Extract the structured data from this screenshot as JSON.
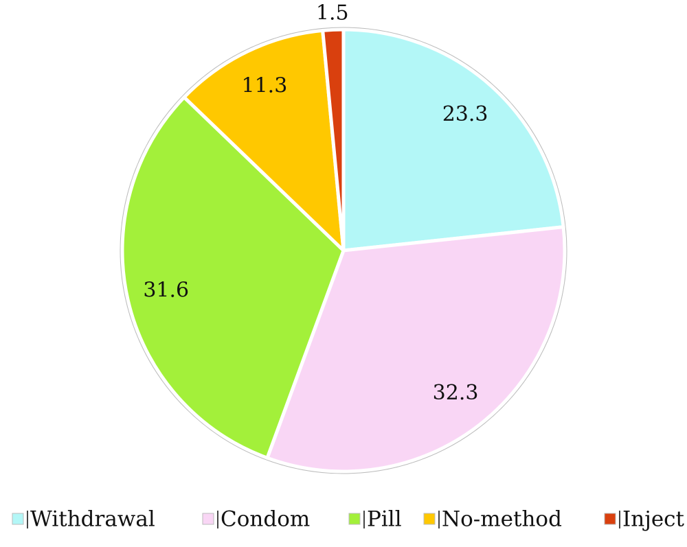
{
  "chart_data": {
    "type": "pie",
    "categories": [
      "Withdrawal",
      "Condom",
      "Pill",
      "No-method",
      "Inject"
    ],
    "values": [
      23.3,
      32.3,
      31.6,
      11.3,
      1.5
    ],
    "colors": [
      "#b3f7f7",
      "#f9d6f5",
      "#a3f03a",
      "#ffc800",
      "#d9400e"
    ]
  }
}
